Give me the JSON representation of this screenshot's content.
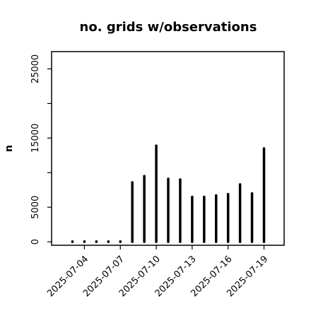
{
  "chart_data": {
    "type": "bar",
    "title": "no. grids w/observations",
    "xlabel": "",
    "ylabel": "n",
    "ylim": [
      -500,
      27500
    ],
    "yticks": [
      0,
      5000,
      15000,
      25000
    ],
    "xtick_labels": [
      "2025-07-04",
      "2025-07-07",
      "2025-07-10",
      "2025-07-13",
      "2025-07-16",
      "2025-07-19"
    ],
    "highlight_tick": "2025-07-10",
    "highlight_color": "#228B22",
    "bar_color": "#000000",
    "categories": [
      "2025-07-03",
      "2025-07-04",
      "2025-07-05",
      "2025-07-06",
      "2025-07-07",
      "2025-07-08",
      "2025-07-09",
      "2025-07-10",
      "2025-07-11",
      "2025-07-12",
      "2025-07-13",
      "2025-07-14",
      "2025-07-15",
      "2025-07-16",
      "2025-07-17",
      "2025-07-18",
      "2025-07-19"
    ],
    "values": [
      50,
      50,
      50,
      50,
      50,
      8600,
      9500,
      13900,
      9100,
      9000,
      6500,
      6500,
      6700,
      6900,
      8300,
      7000,
      13500
    ],
    "grid": false,
    "legend": "none"
  }
}
